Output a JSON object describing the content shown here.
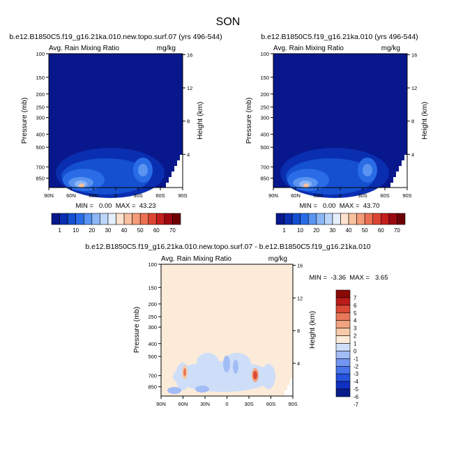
{
  "figure": {
    "title": "SON"
  },
  "palettes": {
    "abs": [
      "#08178c",
      "#0a2eb0",
      "#1450d0",
      "#2a6ce6",
      "#5a93f0",
      "#8cb6f6",
      "#bcd6fb",
      "#e4eefc",
      "#fde3cf",
      "#f9c0a0",
      "#f49b78",
      "#ec7152",
      "#dc4533",
      "#c41f1c",
      "#9c0810",
      "#6e0004"
    ],
    "diff": [
      "#0a1c8c",
      "#1030c4",
      "#2452dc",
      "#4774ea",
      "#7296f0",
      "#a2bcf6",
      "#cedef9",
      "#fcebd9",
      "#f8caa9",
      "#f2a381",
      "#e9785a",
      "#d94a37",
      "#b91c1a",
      "#8a0a08"
    ]
  },
  "chart_data": [
    {
      "type": "heatmap",
      "title": "b.e12.B1850C5.f19_g16.21ka.010.new.topo.surf.07 (yrs 496-544)",
      "left_string": "Avg. Rain Mixing Ratio",
      "right_string": "mg/kg",
      "ylabel": "Pressure (mb)",
      "ylabel_right": "Height (km)",
      "x_ticks": [
        "90N",
        "60N",
        "30N",
        "0",
        "30S",
        "60S",
        "90S"
      ],
      "y_ticks": [
        "100",
        "150",
        "200",
        "250",
        "300",
        "400",
        "500",
        "700",
        "850"
      ],
      "y_right_ticks": [
        "16",
        "12",
        "8",
        "4"
      ],
      "stats": "MIN =   0.00  MAX =  43.23",
      "colorbar_labels": [
        "1",
        "10",
        "20",
        "30",
        "40",
        "50",
        "60",
        "70"
      ]
    },
    {
      "type": "heatmap",
      "title": "b.e12.B1850C5.f19_g16.21ka.010 (yrs 496-544)",
      "left_string": "Avg. Rain Mixing Ratio",
      "right_string": "mg/kg",
      "ylabel": "Pressure (mb)",
      "ylabel_right": "Height (km)",
      "x_ticks": [
        "90N",
        "60N",
        "30N",
        "0",
        "30S",
        "60S",
        "90S"
      ],
      "y_ticks": [
        "100",
        "150",
        "200",
        "250",
        "300",
        "400",
        "500",
        "700",
        "850"
      ],
      "y_right_ticks": [
        "16",
        "12",
        "8",
        "4"
      ],
      "stats": "MIN =   0.00  MAX =  43.70",
      "colorbar_labels": [
        "1",
        "10",
        "20",
        "30",
        "40",
        "50",
        "60",
        "70"
      ]
    },
    {
      "type": "heatmap",
      "title": "b.e12.B1850C5.f19_g16.21ka.010.new.topo.surf.07 - b.e12.B1850C5.f19_g16.21ka.010",
      "left_string": "Avg. Rain Mixing Ratio",
      "right_string": "mg/kg",
      "ylabel": "Pressure (mb)",
      "ylabel_right": "Height (km)",
      "x_ticks": [
        "90N",
        "60N",
        "30N",
        "0",
        "30S",
        "60S",
        "90S"
      ],
      "y_ticks": [
        "100",
        "150",
        "200",
        "250",
        "300",
        "400",
        "500",
        "700",
        "850"
      ],
      "y_right_ticks": [
        "16",
        "12",
        "8",
        "4"
      ],
      "stats": "MIN =  -3.36  MAX =   3.65",
      "colorbar_labels": [
        "7",
        "6",
        "5",
        "4",
        "3",
        "2",
        "1",
        "0",
        "-1",
        "-2",
        "-3",
        "-4",
        "-5",
        "-6",
        "-7"
      ]
    }
  ]
}
